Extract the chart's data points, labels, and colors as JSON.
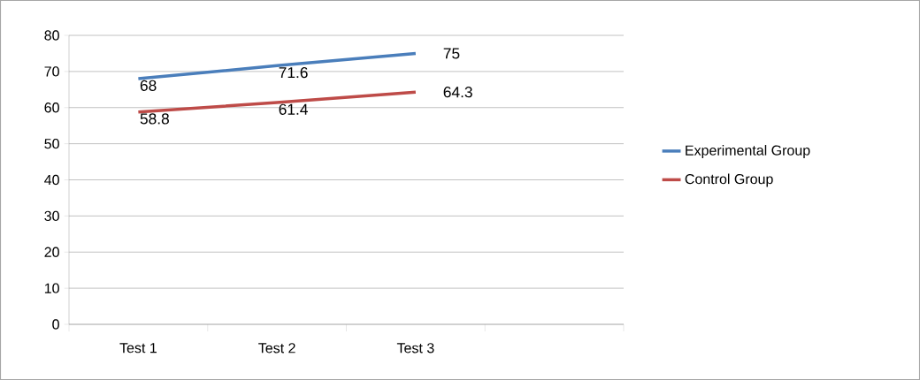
{
  "chart_data": {
    "type": "line",
    "categories": [
      "Test 1",
      "Test 2",
      "Test 3",
      null
    ],
    "series": [
      {
        "name": "Experimental Group",
        "color": "#4a7ebb",
        "values": [
          68,
          71.6,
          75,
          null
        ]
      },
      {
        "name": "Control Group",
        "color": "#be4b48",
        "values": [
          58.8,
          61.4,
          64.3,
          null
        ]
      }
    ],
    "ylim": [
      0,
      80
    ],
    "yticks": [
      0,
      10,
      20,
      30,
      40,
      50,
      60,
      70,
      80
    ],
    "grid": "y",
    "legend": "right",
    "data_labels": true,
    "marker": "none",
    "line_style": "solid"
  }
}
